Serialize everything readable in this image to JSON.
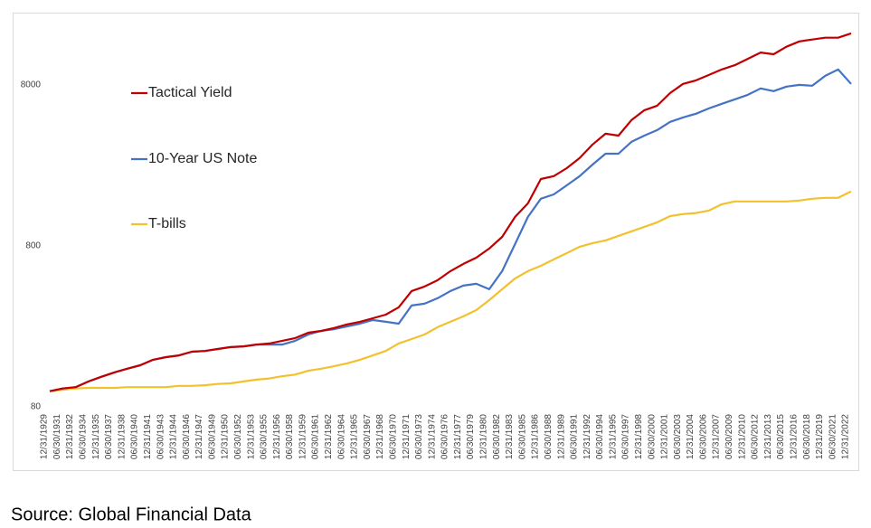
{
  "chart_data": {
    "type": "line",
    "log_y": true,
    "grid": false,
    "categories": [
      "12/31/1929",
      "06/30/1931",
      "12/31/1932",
      "06/30/1934",
      "12/31/1935",
      "06/30/1937",
      "12/31/1938",
      "06/30/1940",
      "12/31/1941",
      "06/30/1943",
      "12/31/1944",
      "06/30/1946",
      "12/31/1947",
      "06/30/1949",
      "12/31/1950",
      "06/30/1952",
      "12/31/1953",
      "06/30/1955",
      "12/31/1956",
      "06/30/1958",
      "12/31/1959",
      "06/30/1961",
      "12/31/1962",
      "06/30/1964",
      "12/31/1965",
      "06/30/1967",
      "12/31/1968",
      "06/30/1970",
      "12/31/1971",
      "06/30/1973",
      "12/31/1974",
      "06/30/1976",
      "12/31/1977",
      "06/30/1979",
      "12/31/1980",
      "06/30/1982",
      "12/31/1983",
      "06/30/1985",
      "12/31/1986",
      "06/30/1988",
      "12/31/1989",
      "06/30/1991",
      "12/31/1992",
      "06/30/1994",
      "12/31/1995",
      "06/30/1997",
      "12/31/1998",
      "06/30/2000",
      "12/31/2001",
      "06/30/2003",
      "12/31/2004",
      "06/30/2006",
      "12/31/2007",
      "06/30/2009",
      "12/31/2010",
      "06/30/2012",
      "12/31/2013",
      "06/30/2015",
      "12/31/2016",
      "06/30/2018",
      "12/31/2019",
      "06/30/2021",
      "12/31/2022"
    ],
    "series": [
      {
        "name": "Tactical Yield",
        "color": "#c00000",
        "values": [
          100,
          104,
          106,
          115,
          123,
          131,
          138,
          145,
          157,
          163,
          167,
          176,
          178,
          183,
          188,
          190,
          195,
          198,
          206,
          214,
          231,
          237,
          247,
          260,
          270,
          284,
          299,
          332,
          419,
          447,
          489,
          557,
          618,
          676,
          770,
          910,
          1210,
          1470,
          2080,
          2170,
          2430,
          2810,
          3410,
          3980,
          3870,
          4830,
          5570,
          5940,
          7120,
          8110,
          8530,
          9220,
          9980,
          10600,
          11600,
          12700,
          12400,
          13800,
          14900,
          15300,
          15700,
          15700,
          16700
        ]
      },
      {
        "name": "10-Year US Note",
        "color": "#4472c4",
        "values": [
          100,
          104,
          106,
          115,
          123,
          131,
          138,
          145,
          157,
          163,
          167,
          176,
          178,
          183,
          188,
          190,
          195,
          195,
          195,
          206,
          225,
          237,
          243,
          253,
          263,
          277,
          270,
          263,
          341,
          350,
          378,
          419,
          453,
          465,
          430,
          557,
          821,
          1210,
          1570,
          1670,
          1900,
          2170,
          2560,
          2990,
          2990,
          3540,
          3870,
          4190,
          4710,
          5020,
          5290,
          5710,
          6100,
          6500,
          6940,
          7600,
          7310,
          7800,
          8000,
          7900,
          9100,
          9980,
          8110
        ]
      },
      {
        "name": "T-bills",
        "color": "#f2c12e",
        "values": [
          100,
          102,
          104,
          105,
          105,
          105,
          106,
          106,
          106,
          106,
          108,
          108,
          109,
          111,
          112,
          115,
          118,
          120,
          124,
          127,
          134,
          138,
          143,
          149,
          157,
          167,
          178,
          198,
          211,
          225,
          250,
          270,
          292,
          319,
          368,
          430,
          502,
          557,
          601,
          659,
          721,
          790,
          832,
          865,
          923,
          984,
          1050,
          1120,
          1225,
          1260,
          1280,
          1325,
          1450,
          1510,
          1510,
          1510,
          1510,
          1510,
          1530,
          1570,
          1590,
          1590,
          1740
        ]
      }
    ],
    "ylim": [
      80,
      20000
    ],
    "yticks": [
      80,
      800,
      8000
    ],
    "source": "Source: Global Financial Data"
  }
}
